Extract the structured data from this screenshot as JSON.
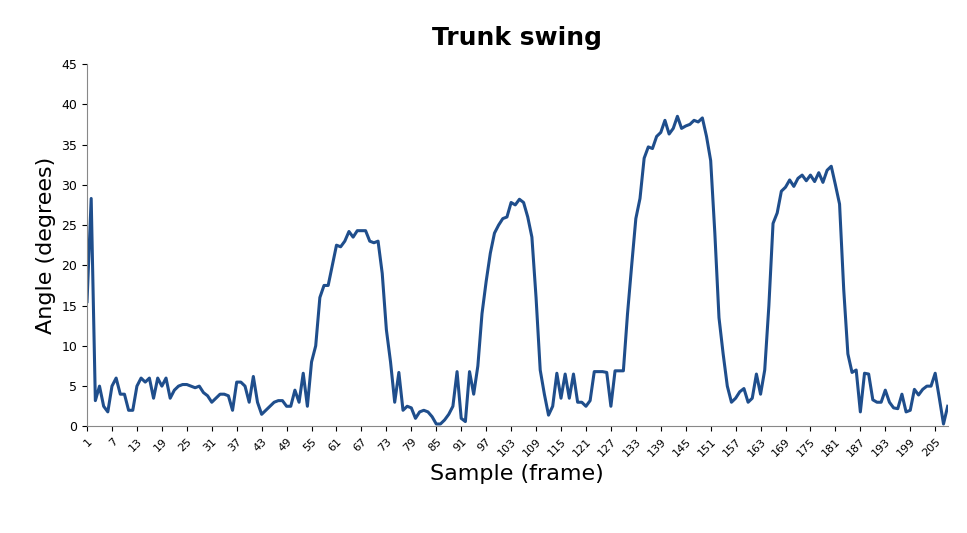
{
  "chart_data": {
    "type": "line",
    "title": "Trunk swing",
    "x_label": "Sample (frame)",
    "y_label": "Angle (degrees)",
    "x": [
      1,
      2,
      3,
      4,
      5,
      6,
      7,
      8,
      9,
      10,
      11,
      12,
      13,
      14,
      15,
      16,
      17,
      18,
      19,
      20,
      21,
      22,
      23,
      24,
      25,
      26,
      27,
      28,
      29,
      30,
      31,
      32,
      33,
      34,
      35,
      36,
      37,
      38,
      39,
      40,
      41,
      42,
      43,
      44,
      45,
      46,
      47,
      48,
      49,
      50,
      51,
      52,
      53,
      54,
      55,
      56,
      57,
      58,
      59,
      60,
      61,
      62,
      63,
      64,
      65,
      66,
      67,
      68,
      69,
      70,
      71,
      72,
      73,
      74,
      75,
      76,
      77,
      78,
      79,
      80,
      81,
      82,
      83,
      84,
      85,
      86,
      87,
      88,
      89,
      90,
      91,
      92,
      93,
      94,
      95,
      96,
      97,
      98,
      99,
      100,
      101,
      102,
      103,
      104,
      105,
      106,
      107,
      108,
      109,
      110,
      111,
      112,
      113,
      114,
      115,
      116,
      117,
      118,
      119,
      120,
      121,
      122,
      123,
      124,
      125,
      126,
      127,
      128,
      129,
      130,
      131,
      132,
      133,
      134,
      135,
      136,
      137,
      138,
      139,
      140,
      141,
      142,
      143,
      144,
      145,
      146,
      147,
      148,
      149,
      150,
      151,
      152,
      153,
      154,
      155,
      156,
      157,
      158,
      159,
      160,
      161,
      162,
      163,
      164,
      165,
      166,
      167,
      168,
      169,
      170,
      171,
      172,
      173,
      174,
      175,
      176,
      177,
      178,
      179,
      180,
      181,
      182,
      183,
      184,
      185,
      186,
      187,
      188,
      189,
      190,
      191,
      192,
      193,
      194,
      195,
      196,
      197,
      198,
      199,
      200,
      201,
      202,
      203,
      204,
      205,
      206,
      207,
      208
    ],
    "values": [
      15.5,
      28.3,
      3.2,
      5,
      2.5,
      1.8,
      5,
      6,
      4,
      4,
      2,
      2,
      5,
      6,
      5.5,
      6,
      3.5,
      6,
      5,
      6,
      3.5,
      4.5,
      5,
      5.2,
      5.2,
      5,
      4.8,
      5,
      4.2,
      3.8,
      3,
      3.5,
      4,
      4,
      3.8,
      2,
      5.5,
      5.5,
      5,
      3,
      6.2,
      3,
      1.5,
      2,
      2.5,
      3,
      3.2,
      3.2,
      2.5,
      2.5,
      4.5,
      3,
      6.6,
      2.5,
      8,
      10,
      16,
      17.5,
      17.5,
      20,
      22.5,
      22.3,
      23,
      24.2,
      23.5,
      24.3,
      24.3,
      24.3,
      23,
      22.8,
      23,
      19,
      12,
      8,
      3,
      6.7,
      2,
      2.5,
      2.3,
      1,
      1.8,
      2,
      1.8,
      1.2,
      0.3,
      0.3,
      0.8,
      1.5,
      2.5,
      6.8,
      1,
      0.6,
      6.8,
      4,
      7.5,
      14,
      18,
      21.5,
      24,
      25,
      25.8,
      26,
      27.8,
      27.5,
      28.2,
      27.8,
      26,
      23.5,
      16,
      7,
      4,
      1.4,
      2.5,
      6.6,
      3.5,
      6.5,
      3.5,
      6.5,
      3,
      3,
      2.5,
      3.2,
      6.8,
      6.8,
      6.8,
      6.7,
      2.5,
      6.9,
      6.9,
      6.9,
      14,
      20,
      25.8,
      28.3,
      33.3,
      34.7,
      34.5,
      36,
      36.5,
      38,
      36.3,
      37,
      38.5,
      37,
      37.3,
      37.5,
      38,
      37.8,
      38.3,
      36,
      33,
      24,
      13.5,
      9,
      5,
      3,
      3.5,
      4.3,
      4.7,
      3,
      3.5,
      6.5,
      4,
      7,
      15,
      25.2,
      26.5,
      29.2,
      29.7,
      30.6,
      29.8,
      30.8,
      31.2,
      30.5,
      31.2,
      30.4,
      31.5,
      30.3,
      31.8,
      32.3,
      30,
      27.6,
      17,
      9,
      6.7,
      7,
      1.8,
      6.6,
      6.5,
      3.3,
      3,
      3,
      4.5,
      3,
      2.3,
      2.2,
      4,
      1.8,
      2,
      4.6,
      3.9,
      4.6,
      5,
      5,
      6.6,
      3.5,
      0.3,
      2.5
    ],
    "color": "#1f4e8c",
    "xlim": [
      1,
      208
    ],
    "xticks": [
      1,
      7,
      13,
      19,
      25,
      31,
      37,
      43,
      49,
      55,
      61,
      67,
      73,
      79,
      85,
      91,
      97,
      103,
      109,
      115,
      121,
      127,
      133,
      139,
      145,
      151,
      157,
      163,
      169,
      175,
      181,
      187,
      193,
      199,
      205
    ],
    "ylim": [
      0,
      45
    ],
    "yticks": [
      0,
      5,
      10,
      15,
      20,
      25,
      30,
      35,
      40,
      45
    ],
    "grid": false
  }
}
